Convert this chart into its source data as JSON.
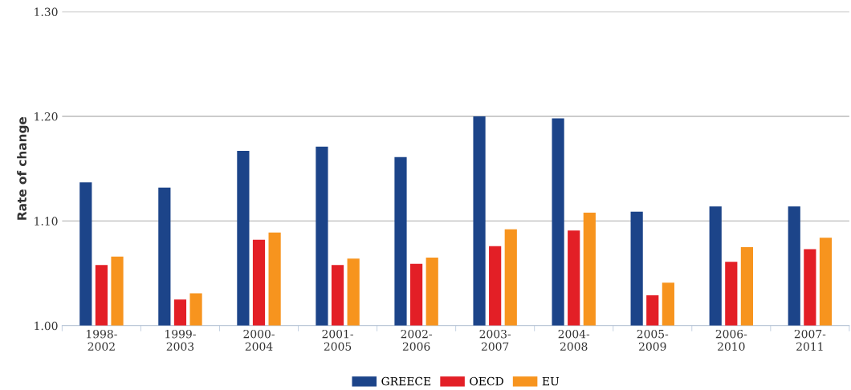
{
  "chart_data": {
    "type": "bar",
    "ylabel": "Rate of change",
    "categories": [
      "1998-\n2002",
      "1999-\n2003",
      "2000-\n2004",
      "2001-\n2005",
      "2002-\n2006",
      "2003-\n2007",
      "2004-\n2008",
      "2005-\n2009",
      "2006-\n2010",
      "2007-\n2011"
    ],
    "series": [
      {
        "name": "GREECE",
        "color": "#1c4489",
        "values": [
          1.137,
          1.132,
          1.167,
          1.171,
          1.161,
          1.2,
          1.198,
          1.109,
          1.114,
          1.114
        ]
      },
      {
        "name": "OECD",
        "color": "#e31f26",
        "values": [
          1.058,
          1.025,
          1.082,
          1.058,
          1.059,
          1.076,
          1.091,
          1.029,
          1.061,
          1.073
        ]
      },
      {
        "name": "EU",
        "color": "#f7941e",
        "values": [
          1.066,
          1.031,
          1.089,
          1.064,
          1.065,
          1.092,
          1.108,
          1.041,
          1.075,
          1.084
        ]
      }
    ],
    "ylim": [
      1.0,
      1.3
    ],
    "yticks": [
      {
        "value": 1.0,
        "label": "1.00"
      },
      {
        "value": 1.1,
        "label": "1.10"
      },
      {
        "value": 1.2,
        "label": "1.20"
      },
      {
        "value": 1.3,
        "label": "1.30"
      }
    ],
    "grid": "y",
    "legend": "bottom"
  }
}
